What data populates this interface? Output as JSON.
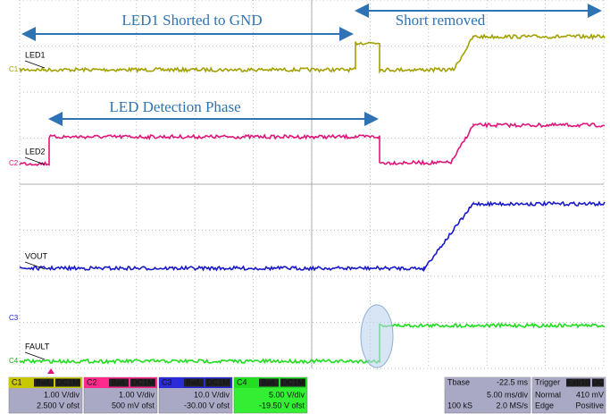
{
  "annotations": {
    "short": "LED1 Shorted to GND",
    "removed": "Short removed",
    "detection": "LED Detection Phase"
  },
  "traces": [
    {
      "marker": "C1",
      "label": "LED1"
    },
    {
      "marker": "C2",
      "label": "LED2"
    },
    {
      "marker": "C3",
      "label": "VOUT"
    },
    {
      "marker": "C4",
      "label": "FAULT"
    }
  ],
  "channels": [
    {
      "name": "C1",
      "bw": "BwL",
      "coupling": "DC1M",
      "vdiv": "1.00 V/div",
      "offset": "2.500 V ofst"
    },
    {
      "name": "C2",
      "bw": "BwL",
      "coupling": "DC1M",
      "vdiv": "1.00 V/div",
      "offset": "500 mV ofst"
    },
    {
      "name": "C3",
      "bw": "BwL",
      "coupling": "DC1M",
      "vdiv": "10.0 V/div",
      "offset": "-30.00 V ofst"
    },
    {
      "name": "C4",
      "bw": "BwL",
      "coupling": "DC1M",
      "vdiv": "5.00 V/div",
      "offset": "-19.50 V ofst"
    }
  ],
  "timebase": {
    "title": "Tbase",
    "delay": "-22.5 ms",
    "tdiv": "5.00 ms/div",
    "samples": "100 kS",
    "rate": "2.0 MS/s"
  },
  "trigger": {
    "title": "Trigger",
    "source": "Ext/10",
    "coupling": "DC",
    "mode": "Normal",
    "level": "410 mV",
    "type": "Edge",
    "slope": "Positive"
  }
}
